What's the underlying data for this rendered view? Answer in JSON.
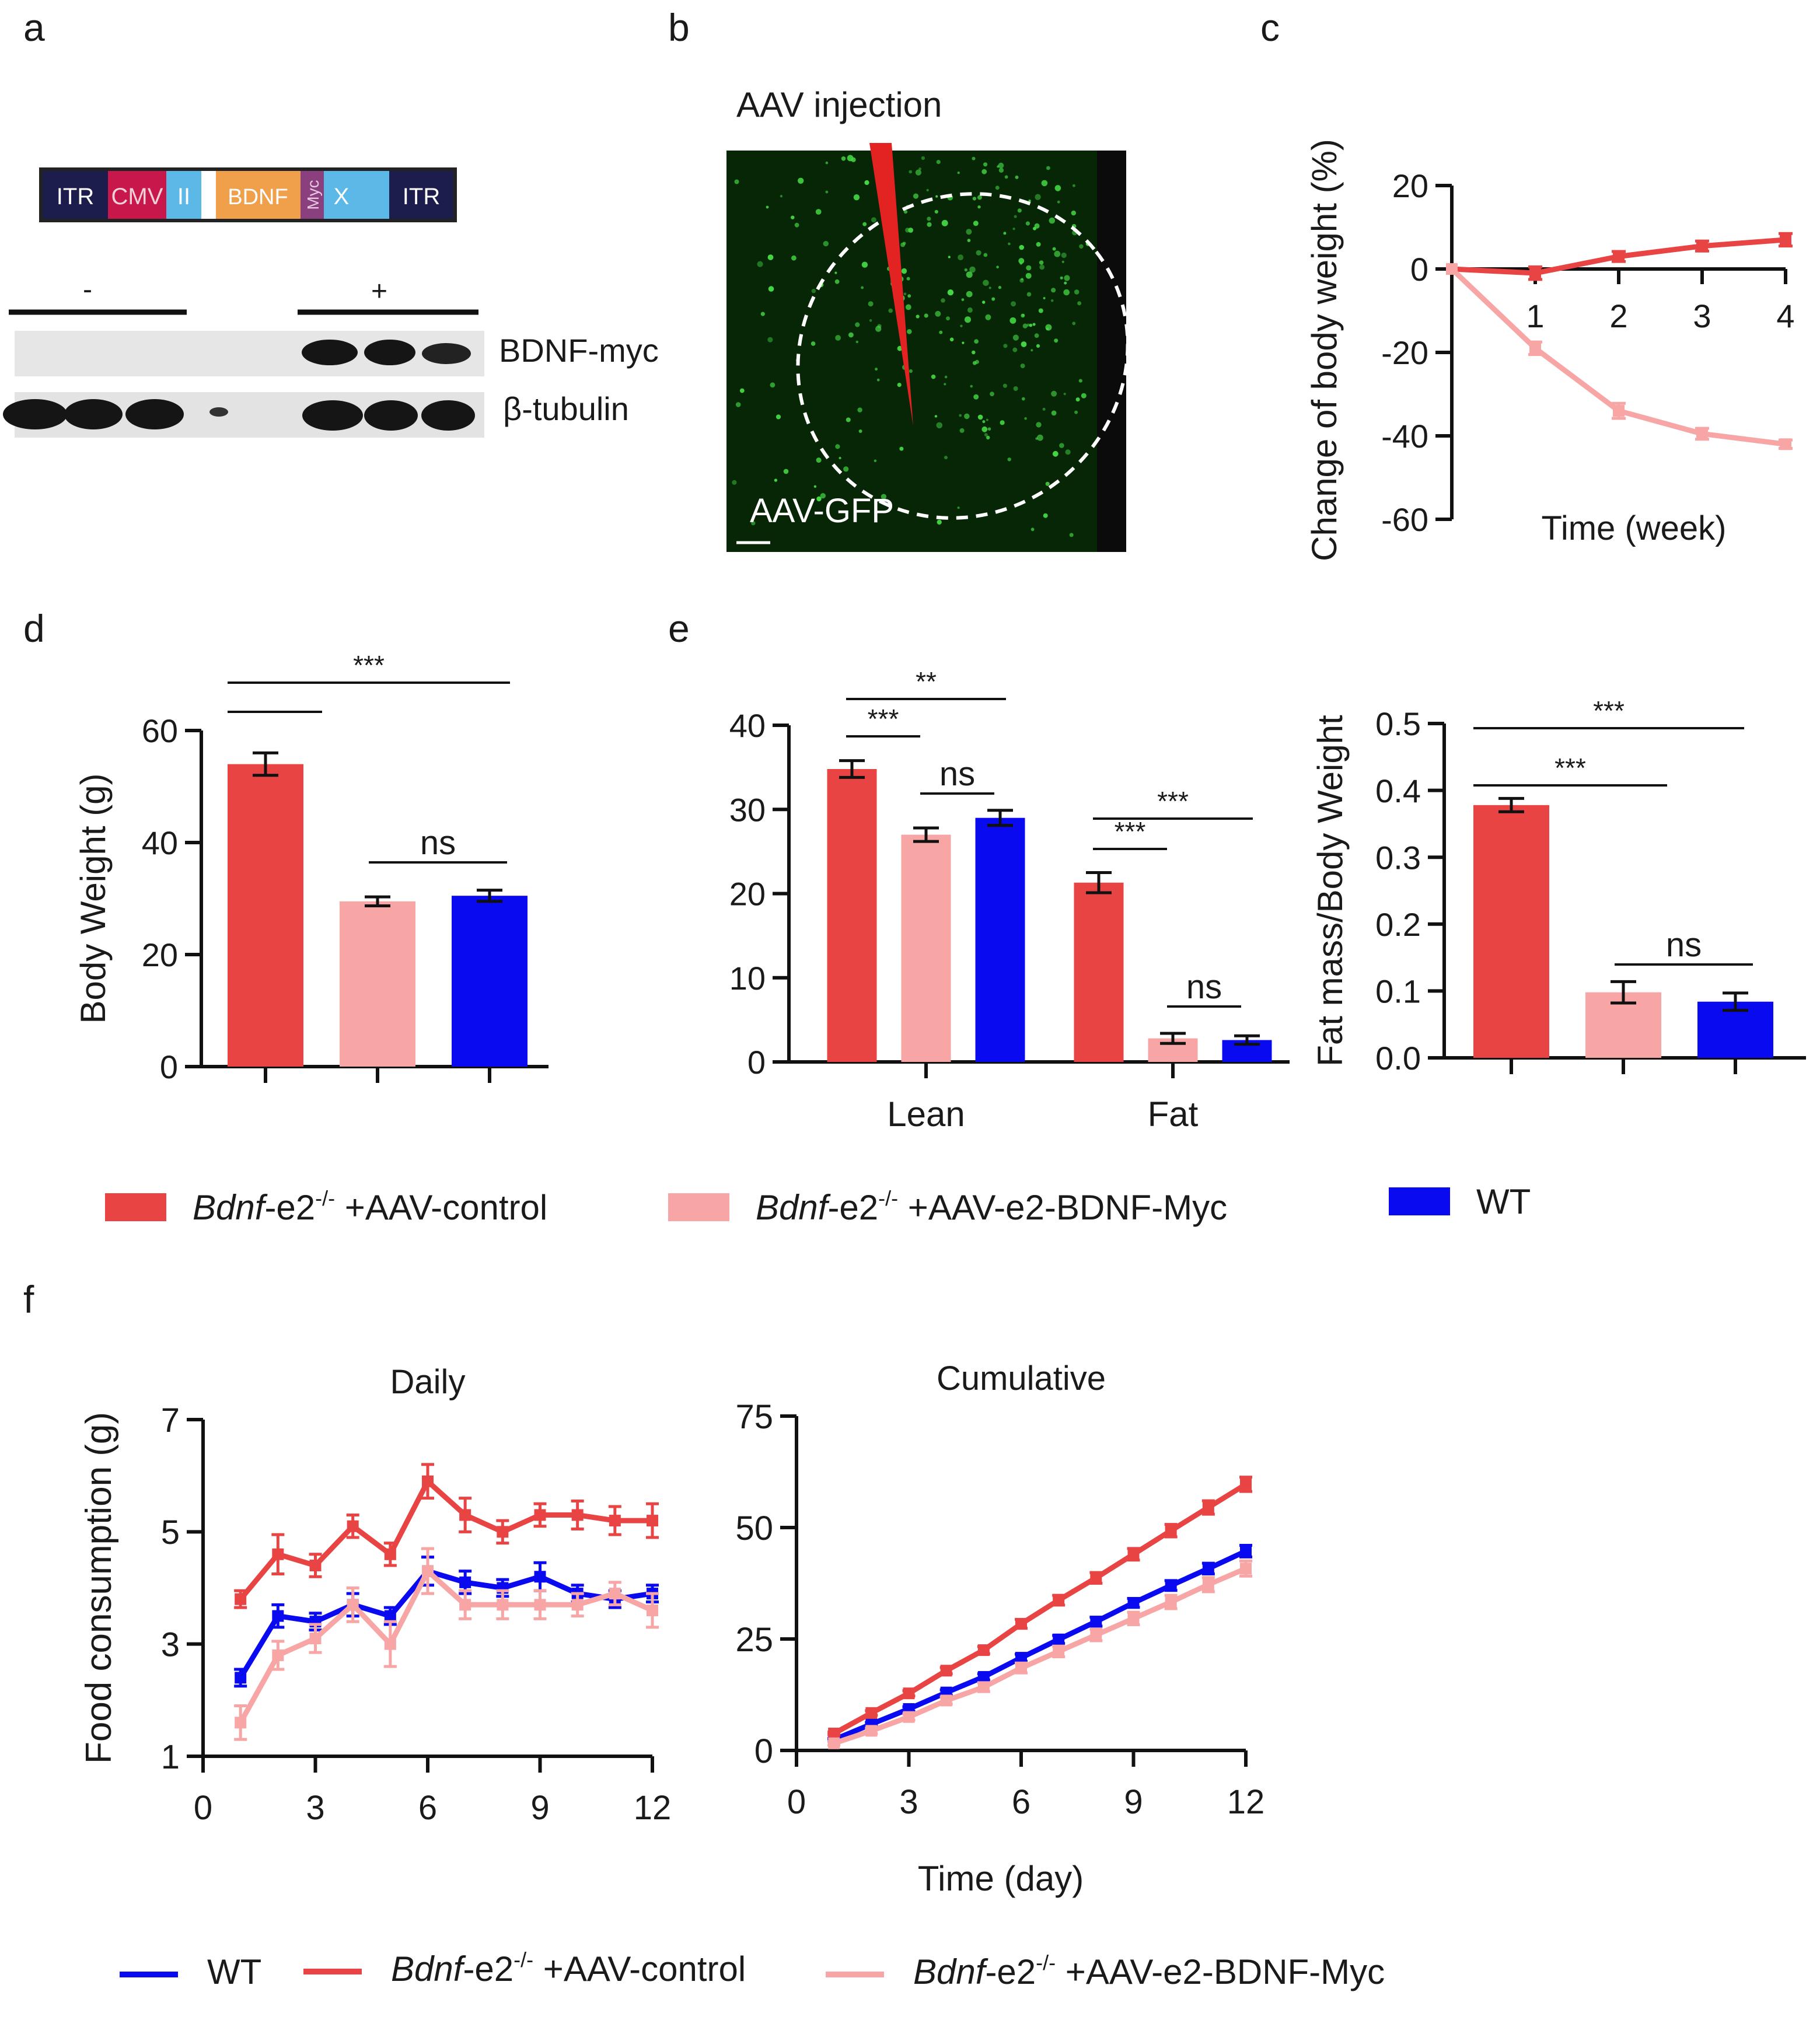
{
  "panel_letters": [
    "a",
    "b",
    "c",
    "d",
    "e",
    "f"
  ],
  "colors": {
    "control": "#e84444",
    "bdnf": "#f7a5a5",
    "wt": "#0a0af0",
    "ladder": "#1d1d4d",
    "cmv": "#c8174b",
    "light_blue": "#5cb8e6",
    "orange": "#f0a04b",
    "myc": "#8a3f7e",
    "gfp_bg": "#062606",
    "gfp_dot": "#45d845",
    "needle": "#e32222"
  },
  "panel_a": {
    "construct": [
      "ITR",
      "CMV",
      "II",
      "BDNF",
      "Myc",
      "X",
      "ITR"
    ],
    "group_minus": "-",
    "group_plus": "+",
    "band_labels": [
      "BDNF-myc",
      "β-tubulin"
    ]
  },
  "panel_b": {
    "title": "AAV injection",
    "label": "AAV-GFP"
  },
  "legend_main": [
    {
      "italic": "Bdnf",
      "rest": "-e2",
      "sup": "-/-",
      "tail": " +AAV-control",
      "color_key": "control"
    },
    {
      "italic": "Bdnf",
      "rest": "-e2",
      "sup": "-/-",
      "tail": " +AAV-e2-BDNF-Myc",
      "color_key": "bdnf"
    },
    {
      "italic": "",
      "rest": "WT",
      "sup": "",
      "tail": "",
      "color_key": "wt"
    }
  ],
  "legend_f": [
    {
      "italic": "",
      "rest": "WT",
      "sup": "",
      "tail": "",
      "color_key": "wt"
    },
    {
      "italic": "Bdnf",
      "rest": "-e2",
      "sup": "-/-",
      "tail": " +AAV-control",
      "color_key": "control"
    },
    {
      "italic": "Bdnf",
      "rest": "-e2",
      "sup": "-/-",
      "tail": " +AAV-e2-BDNF-Myc",
      "color_key": "bdnf"
    }
  ],
  "chart_data": [
    {
      "id": "c",
      "type": "line",
      "ylabel": "Change of body weight (%)",
      "xlabel": "Time (week)",
      "ylim": [
        -60,
        20
      ],
      "yticks": [
        20,
        0,
        -20,
        -40,
        -60
      ],
      "xlim": [
        0,
        4
      ],
      "xticks": [
        1,
        2,
        3,
        4
      ],
      "series": [
        {
          "name": "Bdnf-e2-/- +AAV-control",
          "color_key": "control",
          "x": [
            0,
            1,
            2,
            3,
            4
          ],
          "values": [
            0,
            -1,
            3,
            5.5,
            7
          ],
          "err": [
            0,
            1.5,
            1.2,
            1.2,
            1.5
          ]
        },
        {
          "name": "Bdnf-e2-/- +AAV-e2-BDNF-Myc",
          "color_key": "bdnf",
          "x": [
            0,
            1,
            2,
            3,
            4
          ],
          "values": [
            0,
            -19,
            -34,
            -39.5,
            -42
          ],
          "err": [
            0,
            1.5,
            1.8,
            1.3,
            1
          ]
        }
      ]
    },
    {
      "id": "d",
      "type": "bar",
      "ylabel": "Body Weight (g)",
      "ylim": [
        0,
        60
      ],
      "yticks": [
        0,
        20,
        40,
        60
      ],
      "categories": [
        "Bdnf-e2-/- +AAV-control",
        "Bdnf-e2-/- +AAV-e2-BDNF-Myc",
        "WT"
      ],
      "values": [
        54,
        29.5,
        30.5
      ],
      "err": [
        2,
        0.8,
        1
      ],
      "color_keys": [
        "control",
        "bdnf",
        "wt"
      ],
      "annotations": [
        {
          "text": "***",
          "x1": 0,
          "x2": 2
        },
        {
          "text": "",
          "x1": 0,
          "x2": 1
        },
        {
          "text": "ns",
          "x1": 1,
          "x2": 2
        }
      ]
    },
    {
      "id": "e_left",
      "type": "bar",
      "ylim": [
        0,
        40
      ],
      "yticks": [
        0,
        10,
        20,
        30,
        40
      ],
      "categories": [
        "Lean",
        "Fat"
      ],
      "series": [
        {
          "name": "Bdnf-e2-/- +AAV-control",
          "color_key": "control",
          "values": [
            34.8,
            21.3
          ],
          "err": [
            1,
            1.2
          ]
        },
        {
          "name": "Bdnf-e2-/- +AAV-e2-BDNF-Myc",
          "color_key": "bdnf",
          "values": [
            27,
            2.8
          ],
          "err": [
            0.8,
            0.6
          ]
        },
        {
          "name": "WT",
          "color_key": "wt",
          "values": [
            29,
            2.6
          ],
          "err": [
            0.9,
            0.5
          ]
        }
      ],
      "annotations": [
        {
          "text": "**",
          "group": 0,
          "b1": 0,
          "b2": 2
        },
        {
          "text": "***",
          "group": 0,
          "b1": 0,
          "b2": 1
        },
        {
          "text": "ns",
          "group": 0,
          "b1": 1,
          "b2": 2
        },
        {
          "text": "***",
          "group": 1,
          "b1": 0,
          "b2": 2
        },
        {
          "text": "***",
          "group": 1,
          "b1": 0,
          "b2": 1
        },
        {
          "text": "ns",
          "group": 1,
          "b1": 1,
          "b2": 2
        }
      ]
    },
    {
      "id": "e_right",
      "type": "bar",
      "ylabel": "Fat mass/Body Weight",
      "ylim": [
        0,
        0.5
      ],
      "yticks": [
        0.0,
        0.1,
        0.2,
        0.3,
        0.4,
        0.5
      ],
      "categories": [
        "Bdnf-e2-/- +AAV-control",
        "Bdnf-e2-/- +AAV-e2-BDNF-Myc",
        "WT"
      ],
      "values": [
        0.378,
        0.098,
        0.084
      ],
      "err": [
        0.01,
        0.016,
        0.013
      ],
      "color_keys": [
        "control",
        "bdnf",
        "wt"
      ],
      "annotations": [
        {
          "text": "***",
          "x1": 0,
          "x2": 2
        },
        {
          "text": "***",
          "x1": 0,
          "x2": 1
        },
        {
          "text": "ns",
          "x1": 1,
          "x2": 2
        }
      ]
    },
    {
      "id": "f_daily",
      "type": "line",
      "title": "Daily",
      "ylabel": "Food consumption (g)",
      "ylim": [
        1,
        7
      ],
      "yticks": [
        1,
        3,
        5,
        7
      ],
      "xlim": [
        0,
        12
      ],
      "xticks": [
        0,
        3,
        6,
        9,
        12
      ],
      "series": [
        {
          "name": "WT",
          "color_key": "wt",
          "x": [
            1,
            2,
            3,
            4,
            5,
            6,
            7,
            8,
            9,
            10,
            11,
            12
          ],
          "values": [
            2.4,
            3.5,
            3.4,
            3.7,
            3.5,
            4.3,
            4.1,
            4.0,
            4.2,
            3.9,
            3.8,
            3.9
          ],
          "err": [
            0.15,
            0.2,
            0.15,
            0.2,
            0.15,
            0.25,
            0.2,
            0.15,
            0.25,
            0.15,
            0.15,
            0.15
          ]
        },
        {
          "name": "Bdnf-e2-/- +AAV-control",
          "color_key": "control",
          "x": [
            1,
            2,
            3,
            4,
            5,
            6,
            7,
            8,
            9,
            10,
            11,
            12
          ],
          "values": [
            3.8,
            4.6,
            4.4,
            5.1,
            4.6,
            5.9,
            5.3,
            5.0,
            5.3,
            5.3,
            5.2,
            5.2
          ],
          "err": [
            0.15,
            0.35,
            0.2,
            0.2,
            0.2,
            0.3,
            0.3,
            0.2,
            0.2,
            0.25,
            0.25,
            0.3
          ]
        },
        {
          "name": "Bdnf-e2-/- +AAV-e2-BDNF-Myc",
          "color_key": "bdnf",
          "x": [
            1,
            2,
            3,
            4,
            5,
            6,
            7,
            8,
            9,
            10,
            11,
            12
          ],
          "values": [
            1.6,
            2.8,
            3.1,
            3.7,
            3.0,
            4.3,
            3.7,
            3.7,
            3.7,
            3.7,
            3.9,
            3.6
          ],
          "err": [
            0.3,
            0.25,
            0.25,
            0.3,
            0.4,
            0.4,
            0.25,
            0.25,
            0.25,
            0.2,
            0.2,
            0.3
          ]
        }
      ]
    },
    {
      "id": "f_cumulative",
      "type": "line",
      "title": "Cumulative",
      "xlabel": "Time (day)",
      "ylim": [
        0,
        75
      ],
      "yticks": [
        0,
        25,
        50,
        75
      ],
      "xlim": [
        0,
        12
      ],
      "xticks": [
        0,
        3,
        6,
        9,
        12
      ],
      "series": [
        {
          "name": "WT",
          "color_key": "wt",
          "x": [
            1,
            2,
            3,
            4,
            5,
            6,
            7,
            8,
            9,
            10,
            11,
            12
          ],
          "values": [
            2.4,
            5.9,
            9.3,
            13.0,
            16.5,
            20.8,
            24.9,
            28.9,
            33.1,
            37.0,
            40.8,
            44.7
          ],
          "err": [
            0.3,
            0.4,
            0.5,
            0.6,
            0.7,
            0.8,
            0.9,
            1,
            1,
            1.1,
            1.2,
            1.3
          ]
        },
        {
          "name": "Bdnf-e2-/- +AAV-control",
          "color_key": "control",
          "x": [
            1,
            2,
            3,
            4,
            5,
            6,
            7,
            8,
            9,
            10,
            11,
            12
          ],
          "values": [
            3.8,
            8.4,
            12.8,
            17.9,
            22.5,
            28.4,
            33.7,
            38.7,
            44.0,
            49.3,
            54.5,
            59.7
          ],
          "err": [
            0.3,
            0.5,
            0.6,
            0.7,
            0.8,
            1,
            1.1,
            1.2,
            1.3,
            1.4,
            1.5,
            1.6
          ]
        },
        {
          "name": "Bdnf-e2-/- +AAV-e2-BDNF-Myc",
          "color_key": "bdnf",
          "x": [
            1,
            2,
            3,
            4,
            5,
            6,
            7,
            8,
            9,
            10,
            11,
            12
          ],
          "values": [
            1.6,
            4.4,
            7.5,
            11.2,
            14.2,
            18.5,
            22.2,
            25.9,
            29.6,
            33.3,
            37.2,
            40.8
          ],
          "err": [
            0.4,
            0.6,
            0.7,
            0.8,
            1,
            1.1,
            1.2,
            1.3,
            1.4,
            1.5,
            1.6,
            1.7
          ]
        }
      ]
    }
  ]
}
